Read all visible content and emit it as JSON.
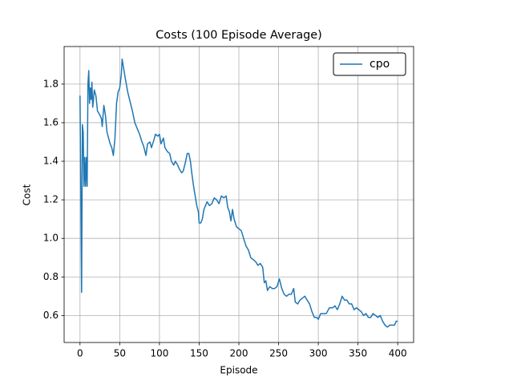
{
  "chart_data": {
    "type": "line",
    "title": "Costs (100 Episode Average)",
    "xlabel": "Episode",
    "ylabel": "Cost",
    "x": [
      0,
      1,
      2,
      3,
      4,
      5,
      6,
      7,
      8,
      9,
      10,
      11,
      12,
      13,
      14,
      15,
      16,
      17,
      18,
      20,
      22,
      25,
      27,
      28,
      30,
      32,
      34,
      36,
      38,
      40,
      42,
      44,
      46,
      48,
      50,
      52,
      53,
      55,
      57,
      60,
      63,
      66,
      69,
      72,
      75,
      78,
      80,
      83,
      85,
      88,
      90,
      93,
      95,
      98,
      100,
      102,
      105,
      107,
      110,
      113,
      115,
      118,
      120,
      123,
      125,
      128,
      130,
      133,
      135,
      137,
      139,
      141,
      143,
      145,
      147,
      149,
      150,
      152,
      154,
      156,
      158,
      160,
      163,
      166,
      169,
      172,
      175,
      178,
      181,
      184,
      186,
      188,
      190,
      192,
      194,
      197,
      200,
      203,
      206,
      209,
      212,
      215,
      218,
      221,
      224,
      227,
      230,
      232,
      234,
      236,
      239,
      242,
      245,
      248,
      251,
      254,
      257,
      260,
      263,
      266,
      269,
      271,
      274,
      277,
      280,
      283,
      286,
      289,
      292,
      295,
      298,
      300,
      303,
      306,
      310,
      314,
      318,
      321,
      324,
      327,
      330,
      333,
      336,
      339,
      342,
      345,
      348,
      351,
      354,
      357,
      360,
      363,
      366,
      369,
      372,
      375,
      378,
      381,
      384,
      387,
      390,
      393,
      396,
      398,
      400
    ],
    "series": [
      {
        "name": "cpo",
        "color": "#1f77b4",
        "values": [
          1.74,
          1.25,
          0.72,
          1.59,
          1.55,
          1.27,
          1.42,
          1.27,
          1.42,
          1.27,
          1.8,
          1.87,
          1.7,
          1.78,
          1.72,
          1.81,
          1.68,
          1.72,
          1.77,
          1.74,
          1.66,
          1.64,
          1.62,
          1.58,
          1.69,
          1.64,
          1.55,
          1.52,
          1.49,
          1.47,
          1.43,
          1.52,
          1.7,
          1.76,
          1.78,
          1.85,
          1.93,
          1.88,
          1.83,
          1.76,
          1.71,
          1.66,
          1.6,
          1.57,
          1.54,
          1.5,
          1.48,
          1.43,
          1.49,
          1.5,
          1.47,
          1.51,
          1.54,
          1.53,
          1.54,
          1.49,
          1.52,
          1.47,
          1.45,
          1.44,
          1.4,
          1.38,
          1.4,
          1.38,
          1.36,
          1.34,
          1.35,
          1.4,
          1.44,
          1.44,
          1.4,
          1.33,
          1.27,
          1.22,
          1.17,
          1.14,
          1.08,
          1.08,
          1.1,
          1.15,
          1.17,
          1.19,
          1.17,
          1.18,
          1.21,
          1.2,
          1.18,
          1.22,
          1.21,
          1.22,
          1.16,
          1.14,
          1.09,
          1.15,
          1.1,
          1.06,
          1.05,
          1.04,
          1.0,
          0.96,
          0.94,
          0.9,
          0.89,
          0.88,
          0.86,
          0.87,
          0.85,
          0.77,
          0.78,
          0.73,
          0.75,
          0.74,
          0.74,
          0.75,
          0.79,
          0.74,
          0.71,
          0.7,
          0.71,
          0.71,
          0.74,
          0.67,
          0.66,
          0.68,
          0.69,
          0.7,
          0.68,
          0.66,
          0.62,
          0.59,
          0.59,
          0.58,
          0.61,
          0.61,
          0.61,
          0.64,
          0.64,
          0.65,
          0.63,
          0.66,
          0.7,
          0.68,
          0.68,
          0.66,
          0.66,
          0.63,
          0.64,
          0.63,
          0.62,
          0.6,
          0.61,
          0.59,
          0.59,
          0.61,
          0.6,
          0.59,
          0.6,
          0.57,
          0.55,
          0.54,
          0.55,
          0.55,
          0.55,
          0.57,
          0.57
        ]
      }
    ],
    "xlim": [
      -20,
      420
    ],
    "ylim": [
      0.46,
      1.995
    ],
    "xticks": [
      0,
      50,
      100,
      150,
      200,
      250,
      300,
      350,
      400
    ],
    "yticks": [
      0.6,
      0.8,
      {
        "value": 1,
        "label": "1.0"
      },
      1.2,
      1.4,
      1.6,
      1.8
    ],
    "grid": true,
    "legend": "upper right"
  }
}
